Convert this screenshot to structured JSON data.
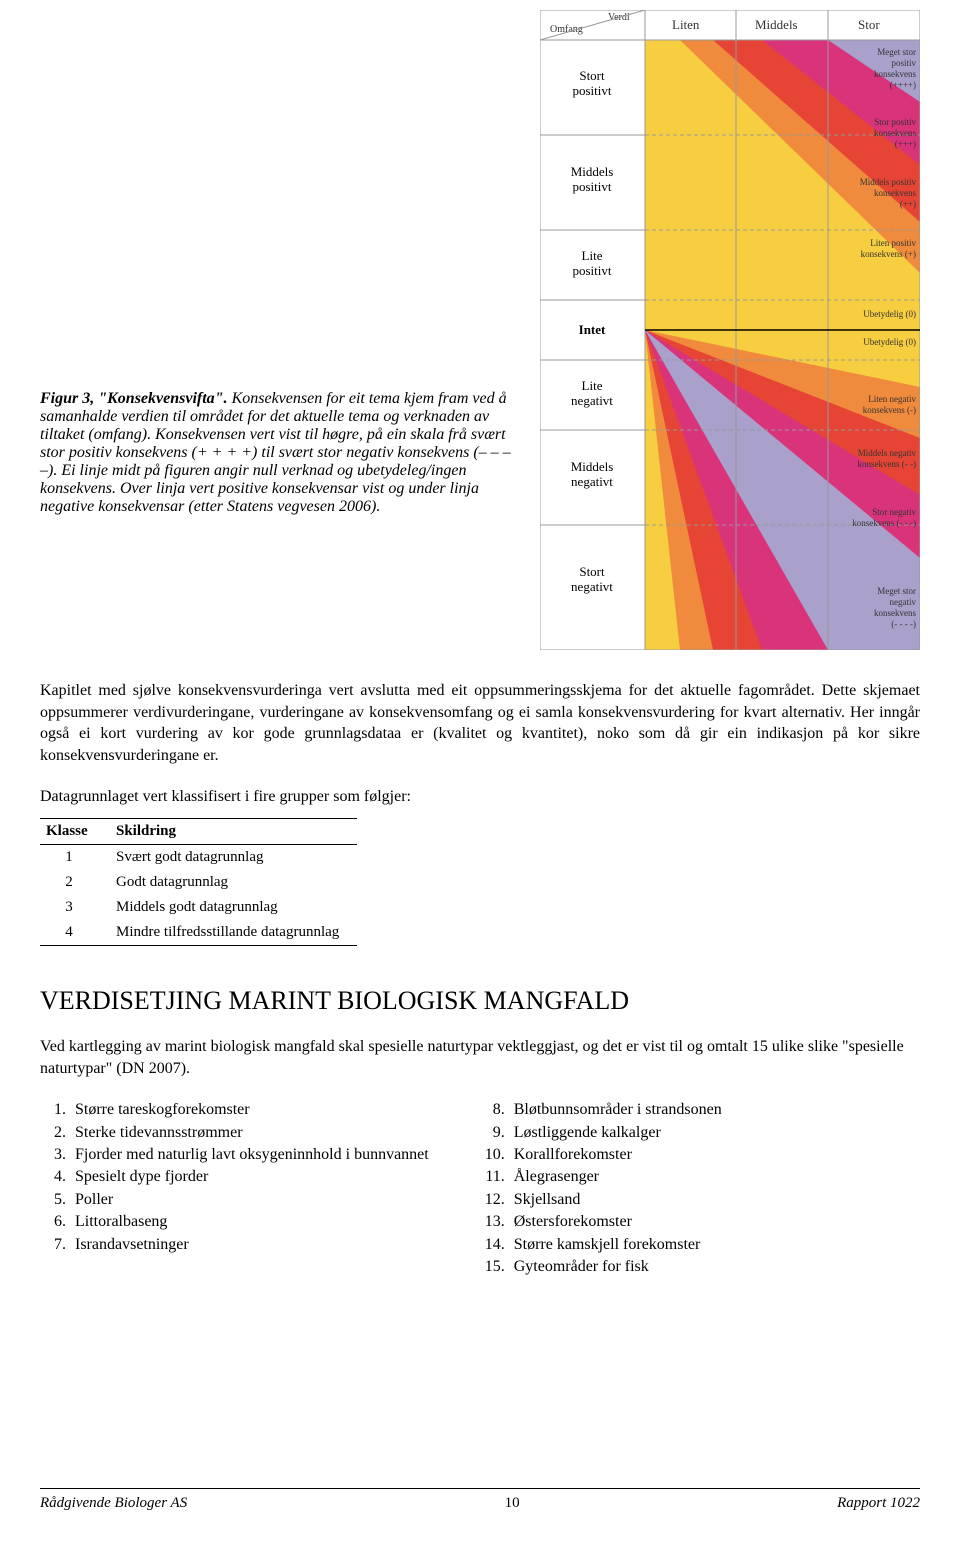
{
  "figure": {
    "caption_bold": "Figur 3, \"Konsekvensvifta\".",
    "caption_rest": " Konsekvensen for eit tema kjem fram ved å samanhalde verdien til området for det aktuelle tema og verknaden av tiltaket (omfang). Konsekvensen vert vist til høgre, på ein skala frå svært stor positiv konsekvens (+ + + +) til svært stor negativ konsekvens (– – – –). Ei linje midt på figuren angir null verknad og ubetydeleg/ingen konsekvens. Over linja vert positive konsekvensar vist og under linja negative konsekvensar (etter Statens vegvesen 2006).",
    "axis_top_left": "Omfang",
    "axis_top_right": "Verdi",
    "col_headers": [
      "Liten",
      "Middels",
      "Stor"
    ],
    "row_headers": [
      "Stort positivt",
      "Middels positivt",
      "Lite positivt",
      "Intet",
      "Lite negativt",
      "Middels negativt",
      "Stort negativt"
    ],
    "labels_right": [
      "Meget stor positiv konsekvens (++++)",
      "Stor positiv konsekvens (+++)",
      "Middels positiv konsekvens (++)",
      "Liten positiv konsekvens (+)",
      "Ubetydelig (0)",
      "Ubetydelig (0)",
      "Liten negativ konsekvens (-)",
      "Middels negativ konsekvens (- -)",
      "Stor negativ konsekvens (- - -)",
      "Meget stor negativ konsekvens (- - - -)"
    ],
    "colors": {
      "purple": "#a9a0cc",
      "magenta": "#d9337a",
      "red": "#e64535",
      "orange": "#f08a3c",
      "yellow": "#f7ce3f",
      "grid": "#999999",
      "text": "#333333"
    }
  },
  "para1": "Kapitlet med sjølve konsekvensvurderinga vert avslutta med eit oppsummeringsskjema for det aktuelle fagområdet. Dette skjemaet oppsummerer verdivurderingane, vurderingane av konsekvensomfang og ei samla konsekvensvurdering for kvart alternativ. Her inngår også ei kort vurdering av kor gode grunnlagsdataa er (kvalitet og kvantitet), noko som då gir ein indikasjon på kor sikre konsekvensvurderingane er.",
  "para2": "Datagrunnlaget vert klassifisert i fire grupper som følgjer:",
  "table": {
    "head": [
      "Klasse",
      "Skildring"
    ],
    "rows": [
      [
        "1",
        "Svært godt datagrunnlag"
      ],
      [
        "2",
        "Godt datagrunnlag"
      ],
      [
        "3",
        "Middels godt datagrunnlag"
      ],
      [
        "4",
        "Mindre tilfredsstillande datagrunnlag"
      ]
    ]
  },
  "heading": "VERDISETJING MARINT BIOLOGISK MANGFALD",
  "para3": "Ved kartlegging av marint biologisk mangfald skal spesielle naturtypar vektleggjast, og det er vist til og omtalt 15 ulike slike \"spesielle naturtypar\" (DN 2007).",
  "list_left": [
    "Større tareskogforekomster",
    "Sterke tidevannsstrømmer",
    "Fjorder med naturlig lavt oksygeninnhold i bunnvannet",
    "Spesielt dype fjorder",
    "Poller",
    "Littoralbaseng",
    "Israndavsetninger"
  ],
  "list_right": [
    "Bløtbunnsområder i strandsonen",
    "Løstliggende kalkalger",
    "Korallforekomster",
    "Ålegrasenger",
    "Skjellsand",
    "Østersforekomster",
    "Større kamskjell forekomster",
    "Gyteområder for fisk"
  ],
  "footer": {
    "left": "Rådgivende Biologer AS",
    "page": "10",
    "right": "Rapport 1022"
  }
}
